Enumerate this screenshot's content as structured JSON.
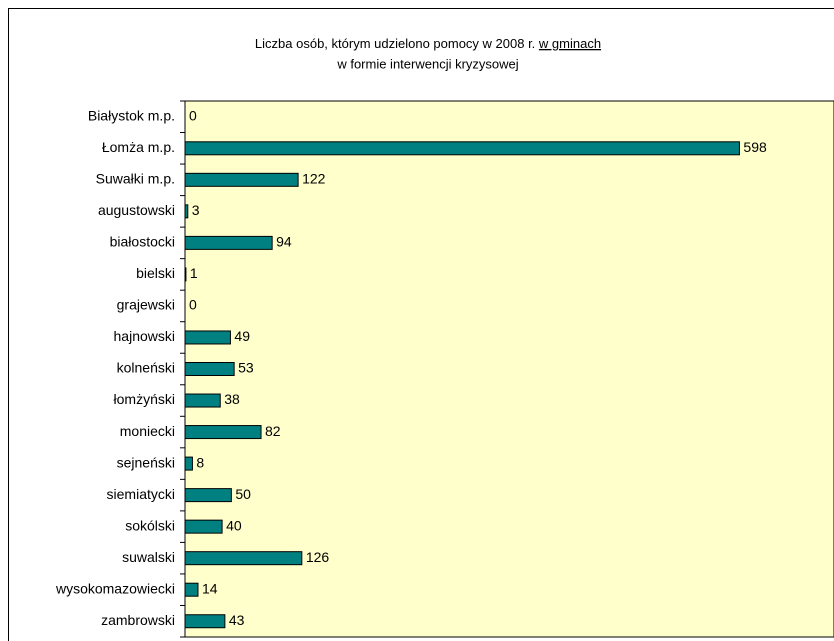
{
  "chart_data": {
    "type": "bar",
    "orientation": "horizontal",
    "title": [
      "Liczba osób, którym udzielono pomocy w 2008 r.",
      "w gminach",
      "w formie interwencji kryzysowej"
    ],
    "categories": [
      "Białystok m.p.",
      "Łomża m.p.",
      "Suwałki m.p.",
      "augustowski",
      "białostocki",
      "bielski",
      "grajewski",
      "hajnowski",
      "kolneński",
      "łomżyński",
      "moniecki",
      "sejneński",
      "siemiatycki",
      "sokólski",
      "suwalski",
      "wysokomazowiecki",
      "zambrowski"
    ],
    "values": [
      0,
      598,
      122,
      3,
      94,
      1,
      0,
      49,
      53,
      38,
      82,
      8,
      50,
      40,
      126,
      14,
      43
    ],
    "color": "#008080",
    "plot_background": "#ffffcc",
    "xlim": [
      0,
      700
    ]
  }
}
